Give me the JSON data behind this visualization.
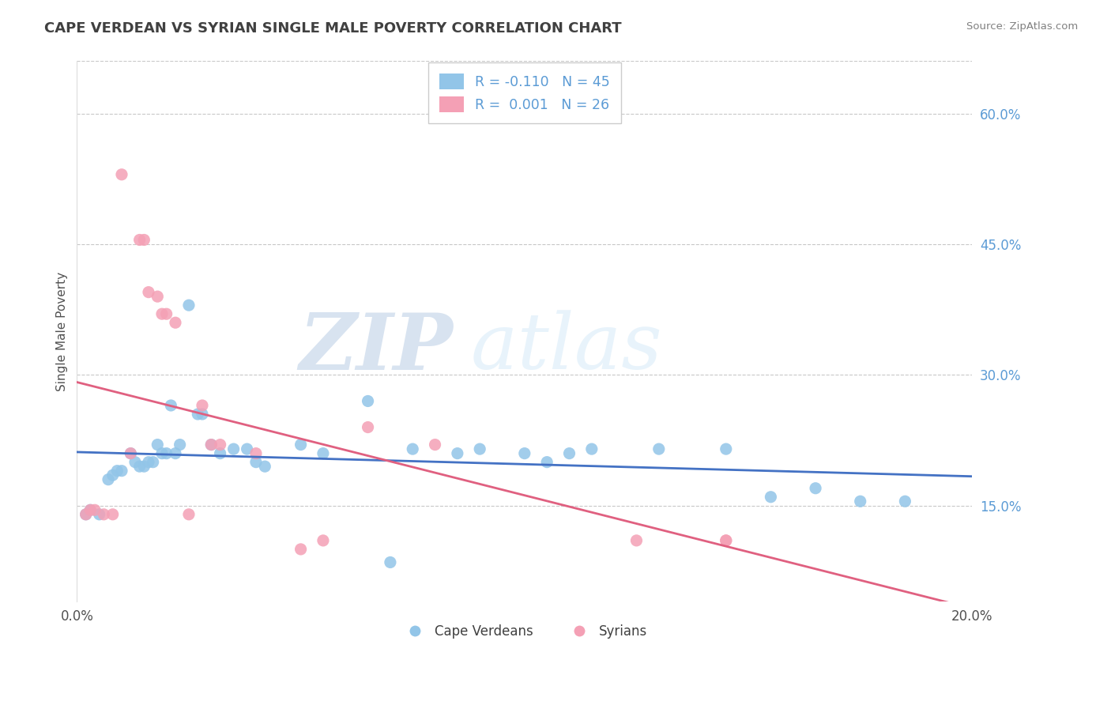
{
  "title": "CAPE VERDEAN VS SYRIAN SINGLE MALE POVERTY CORRELATION CHART",
  "source": "Source: ZipAtlas.com",
  "ylabel": "Single Male Poverty",
  "ytick_values": [
    0.15,
    0.3,
    0.45,
    0.6
  ],
  "xmin": 0.0,
  "xmax": 0.2,
  "ymin": 0.04,
  "ymax": 0.66,
  "color_blue": "#92C5E8",
  "color_pink": "#F4A0B5",
  "color_blue_line": "#4472C4",
  "color_pink_line": "#E06080",
  "color_grid": "#C8C8C8",
  "cape_verdean_x": [
    0.002,
    0.003,
    0.005,
    0.007,
    0.008,
    0.009,
    0.01,
    0.012,
    0.013,
    0.014,
    0.015,
    0.016,
    0.017,
    0.018,
    0.019,
    0.02,
    0.021,
    0.022,
    0.023,
    0.025,
    0.027,
    0.028,
    0.03,
    0.032,
    0.035,
    0.038,
    0.04,
    0.042,
    0.05,
    0.055,
    0.065,
    0.07,
    0.075,
    0.085,
    0.09,
    0.1,
    0.105,
    0.11,
    0.115,
    0.13,
    0.145,
    0.155,
    0.165,
    0.175,
    0.185
  ],
  "cape_verdean_y": [
    0.14,
    0.145,
    0.14,
    0.18,
    0.185,
    0.19,
    0.19,
    0.21,
    0.2,
    0.195,
    0.195,
    0.2,
    0.2,
    0.22,
    0.21,
    0.21,
    0.265,
    0.21,
    0.22,
    0.38,
    0.255,
    0.255,
    0.22,
    0.21,
    0.215,
    0.215,
    0.2,
    0.195,
    0.22,
    0.21,
    0.27,
    0.085,
    0.215,
    0.21,
    0.215,
    0.21,
    0.2,
    0.21,
    0.215,
    0.215,
    0.215,
    0.16,
    0.17,
    0.155,
    0.155
  ],
  "syrian_x": [
    0.002,
    0.003,
    0.004,
    0.006,
    0.008,
    0.01,
    0.012,
    0.014,
    0.015,
    0.016,
    0.018,
    0.019,
    0.02,
    0.022,
    0.025,
    0.028,
    0.03,
    0.032,
    0.04,
    0.05,
    0.055,
    0.065,
    0.08,
    0.125,
    0.145,
    0.145
  ],
  "syrian_y": [
    0.14,
    0.145,
    0.145,
    0.14,
    0.14,
    0.53,
    0.21,
    0.455,
    0.455,
    0.395,
    0.39,
    0.37,
    0.37,
    0.36,
    0.14,
    0.265,
    0.22,
    0.22,
    0.21,
    0.1,
    0.11,
    0.24,
    0.22,
    0.11,
    0.11,
    0.11
  ]
}
